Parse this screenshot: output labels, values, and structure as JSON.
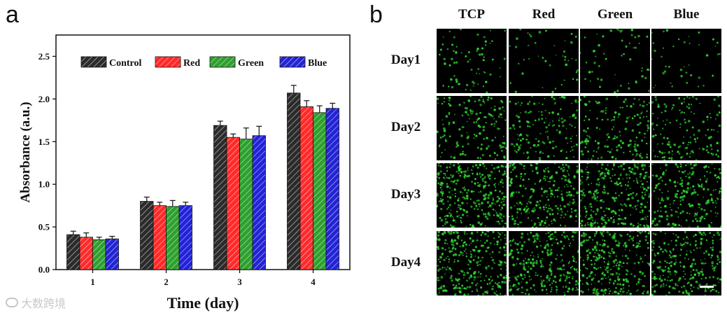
{
  "panel_a": {
    "letter": "a",
    "chart_data": {
      "type": "bar",
      "categories": [
        "1",
        "2",
        "3",
        "4"
      ],
      "series": [
        {
          "name": "Control",
          "color": "#2b2b2b",
          "values": [
            0.41,
            0.8,
            1.69,
            2.07
          ],
          "errors": [
            0.04,
            0.05,
            0.05,
            0.09
          ]
        },
        {
          "name": "Red",
          "color": "#ff2a2a",
          "values": [
            0.38,
            0.75,
            1.55,
            1.91
          ],
          "errors": [
            0.05,
            0.04,
            0.04,
            0.07
          ]
        },
        {
          "name": "Green",
          "color": "#2ea02e",
          "values": [
            0.35,
            0.74,
            1.53,
            1.84
          ],
          "errors": [
            0.03,
            0.07,
            0.13,
            0.08
          ]
        },
        {
          "name": "Blue",
          "color": "#2323d6",
          "values": [
            0.36,
            0.75,
            1.57,
            1.89
          ],
          "errors": [
            0.03,
            0.04,
            0.11,
            0.06
          ]
        }
      ],
      "xlabel": "Time (day)",
      "ylabel": "Absorbance (a.u.)",
      "ylim": [
        0,
        2.75
      ],
      "yticks": [
        "0.0",
        "0.5",
        "1.0",
        "1.5",
        "2.0",
        "2.5"
      ],
      "ytick_values": [
        0,
        0.5,
        1.0,
        1.5,
        2.0,
        2.5
      ],
      "legend_position": "top",
      "grid": false,
      "hatched": true
    }
  },
  "panel_b": {
    "letter": "b",
    "columns": [
      "TCP",
      "Red",
      "Green",
      "Blue"
    ],
    "rows": [
      "Day1",
      "Day2",
      "Day3",
      "Day4"
    ],
    "density": [
      [
        70,
        45,
        55,
        40
      ],
      [
        160,
        150,
        150,
        140
      ],
      [
        320,
        260,
        300,
        230
      ],
      [
        300,
        270,
        290,
        260
      ]
    ],
    "cell_color": "#2fd12f"
  },
  "watermark": "大数跨境"
}
